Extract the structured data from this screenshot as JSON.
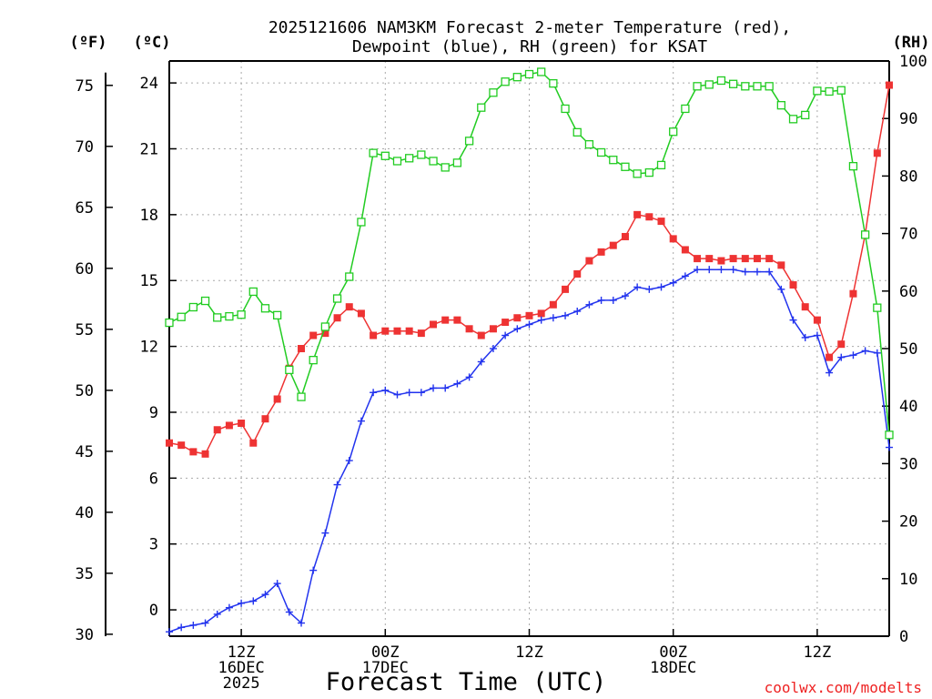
{
  "chart_data": {
    "type": "line",
    "title_line1": "2025121606 NAM3KM Forecast 2-meter Temperature (red),",
    "title_line2": "Dewpoint (blue), RH (green) for KSAT",
    "xlabel": "Forecast Time (UTC)",
    "credit": "coolwx.com/modelts",
    "units": {
      "left_outer": "(ºF)",
      "left_inner": "(ºC)",
      "right": "(RH)"
    },
    "x_hours": [
      0,
      1,
      2,
      3,
      4,
      5,
      6,
      7,
      8,
      9,
      10,
      11,
      12,
      13,
      14,
      15,
      16,
      17,
      18,
      19,
      20,
      21,
      22,
      23,
      24,
      25,
      26,
      27,
      28,
      29,
      30,
      31,
      32,
      33,
      34,
      35,
      36,
      37,
      38,
      39,
      40,
      41,
      42,
      43,
      44,
      45,
      46,
      47,
      48,
      49,
      50,
      51,
      52,
      53,
      54,
      55,
      56,
      57,
      58,
      59,
      60
    ],
    "xlim": [
      0,
      60
    ],
    "x_ticks": [
      {
        "hour": 6,
        "lines": [
          "12Z",
          "16DEC",
          "2025"
        ]
      },
      {
        "hour": 18,
        "lines": [
          "00Z",
          "17DEC"
        ]
      },
      {
        "hour": 30,
        "lines": [
          "12Z"
        ]
      },
      {
        "hour": 42,
        "lines": [
          "00Z",
          "18DEC"
        ]
      },
      {
        "hour": 54,
        "lines": [
          "12Z"
        ]
      }
    ],
    "celsius_axis": {
      "ylim": [
        -1.2,
        25
      ],
      "ticks": [
        0,
        3,
        6,
        9,
        12,
        15,
        18,
        21,
        24
      ]
    },
    "fahrenheit_ticks": [
      30,
      35,
      40,
      45,
      50,
      55,
      60,
      65,
      70,
      75
    ],
    "rh_axis": {
      "ylim": [
        0,
        100
      ],
      "ticks": [
        0,
        10,
        20,
        30,
        40,
        50,
        60,
        70,
        80,
        90,
        100
      ]
    },
    "series": [
      {
        "name": "2-meter Temperature",
        "unit": "C",
        "color": "#ee3333",
        "marker": "filled-square",
        "values": [
          7.6,
          7.5,
          7.2,
          7.1,
          8.2,
          8.4,
          8.5,
          7.6,
          8.7,
          9.6,
          11.0,
          11.9,
          12.5,
          12.6,
          13.3,
          13.8,
          13.5,
          12.5,
          12.7,
          12.7,
          12.7,
          12.6,
          13.0,
          13.2,
          13.2,
          12.8,
          12.5,
          12.8,
          13.1,
          13.3,
          13.4,
          13.5,
          13.9,
          14.6,
          15.3,
          15.9,
          16.3,
          16.6,
          17.0,
          18.0,
          17.9,
          17.7,
          16.9,
          16.4,
          16.0,
          16.0,
          15.9,
          16.0,
          16.0,
          16.0,
          16.0,
          15.7,
          14.8,
          13.8,
          13.2,
          11.5,
          12.1,
          14.4,
          17.1,
          20.8,
          23.9
        ]
      },
      {
        "name": "Dewpoint",
        "unit": "C",
        "color": "#2233ee",
        "marker": "plus",
        "values": [
          -1.0,
          -0.8,
          -0.7,
          -0.6,
          -0.2,
          0.1,
          0.3,
          0.4,
          0.7,
          1.2,
          -0.1,
          -0.6,
          1.8,
          3.5,
          5.7,
          6.8,
          8.6,
          9.9,
          10.0,
          9.8,
          9.9,
          9.9,
          10.1,
          10.1,
          10.3,
          10.6,
          11.3,
          11.9,
          12.5,
          12.8,
          13.0,
          13.2,
          13.3,
          13.4,
          13.6,
          13.9,
          14.1,
          14.1,
          14.3,
          14.7,
          14.6,
          14.7,
          14.9,
          15.2,
          15.5,
          15.5,
          15.5,
          15.5,
          15.4,
          15.4,
          15.4,
          14.6,
          13.2,
          12.4,
          12.5,
          10.8,
          11.5,
          11.6,
          11.8,
          11.7,
          7.4
        ]
      },
      {
        "name": "RH",
        "unit": "%",
        "color": "#22cc22",
        "marker": "open-square",
        "values": [
          54.5,
          55.5,
          57.2,
          58.3,
          55.4,
          55.6,
          55.9,
          59.9,
          57.0,
          55.8,
          46.3,
          41.6,
          48.0,
          53.8,
          58.7,
          62.5,
          72.0,
          84.0,
          83.5,
          82.6,
          83.1,
          83.7,
          82.6,
          81.5,
          82.3,
          86.1,
          91.9,
          94.5,
          96.4,
          97.2,
          97.7,
          98.1,
          96.1,
          91.7,
          87.6,
          85.5,
          84.1,
          82.8,
          81.6,
          80.4,
          80.6,
          81.9,
          87.7,
          91.7,
          95.6,
          95.9,
          96.6,
          96.0,
          95.6,
          95.6,
          95.6,
          92.3,
          89.9,
          90.6,
          94.8,
          94.7,
          94.9,
          81.7,
          69.8,
          57.1,
          35.0
        ]
      }
    ]
  }
}
